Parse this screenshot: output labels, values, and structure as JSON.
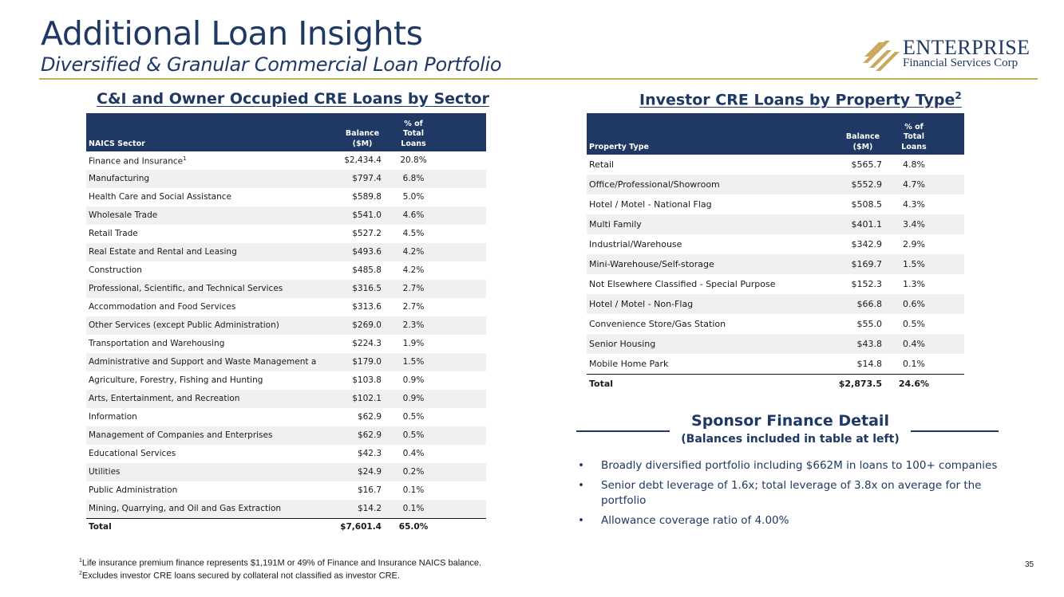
{
  "header": {
    "title": "Additional Loan Insights",
    "subtitle": "Diversified & Granular Commercial Loan Portfolio"
  },
  "logo": {
    "line1": "ENTERPRISE",
    "line2": "Financial Services Corp",
    "icon": "enterprise-stripes-logo",
    "color": "#c9a95c"
  },
  "ci_table": {
    "title": "C&I and Owner Occupied CRE Loans by Sector",
    "headers": {
      "name": "NAICS Sector",
      "balance": "Balance ($M)",
      "pct": "% of Total Loans"
    },
    "rows": [
      {
        "name": "Finance and Insurance",
        "sup": "1",
        "balance": "$2,434.4",
        "pct": "20.8%"
      },
      {
        "name": "Manufacturing",
        "balance": "$797.4",
        "pct": "6.8%"
      },
      {
        "name": "Health Care and Social Assistance",
        "balance": "$589.8",
        "pct": "5.0%"
      },
      {
        "name": "Wholesale Trade",
        "balance": "$541.0",
        "pct": "4.6%"
      },
      {
        "name": "Retail Trade",
        "balance": "$527.2",
        "pct": "4.5%"
      },
      {
        "name": "Real Estate and Rental and Leasing",
        "balance": "$493.6",
        "pct": "4.2%"
      },
      {
        "name": "Construction",
        "balance": "$485.8",
        "pct": "4.2%"
      },
      {
        "name": "Professional, Scientific, and Technical Services",
        "balance": "$316.5",
        "pct": "2.7%"
      },
      {
        "name": "Accommodation and Food Services",
        "balance": "$313.6",
        "pct": "2.7%"
      },
      {
        "name": "Other Services (except Public Administration)",
        "balance": "$269.0",
        "pct": "2.3%"
      },
      {
        "name": "Transportation and Warehousing",
        "balance": "$224.3",
        "pct": "1.9%"
      },
      {
        "name": "Administrative and Support and Waste Management a",
        "balance": "$179.0",
        "pct": "1.5%"
      },
      {
        "name": "Agriculture, Forestry, Fishing and Hunting",
        "balance": "$103.8",
        "pct": "0.9%"
      },
      {
        "name": "Arts, Entertainment, and Recreation",
        "balance": "$102.1",
        "pct": "0.9%"
      },
      {
        "name": "Information",
        "balance": "$62.9",
        "pct": "0.5%"
      },
      {
        "name": "Management of Companies and Enterprises",
        "balance": "$62.9",
        "pct": "0.5%"
      },
      {
        "name": "Educational Services",
        "balance": "$42.3",
        "pct": "0.4%"
      },
      {
        "name": "Utilities",
        "balance": "$24.9",
        "pct": "0.2%"
      },
      {
        "name": "Public Administration",
        "balance": "$16.7",
        "pct": "0.1%"
      },
      {
        "name": "Mining, Quarrying, and Oil and Gas Extraction",
        "balance": "$14.2",
        "pct": "0.1%"
      }
    ],
    "total": {
      "name": "Total",
      "balance": "$7,601.4",
      "pct": "65.0%"
    }
  },
  "cre_table": {
    "title": "Investor CRE Loans by Property Type",
    "title_sup": "2",
    "headers": {
      "name": "Property Type",
      "balance": "Balance ($M)",
      "pct": "% of Total Loans"
    },
    "rows": [
      {
        "name": "Retail",
        "balance": "$565.7",
        "pct": "4.8%"
      },
      {
        "name": "Office/Professional/Showroom",
        "balance": "$552.9",
        "pct": "4.7%"
      },
      {
        "name": "Hotel / Motel - National Flag",
        "balance": "$508.5",
        "pct": "4.3%"
      },
      {
        "name": "Multi Family",
        "balance": "$401.1",
        "pct": "3.4%"
      },
      {
        "name": "Industrial/Warehouse",
        "balance": "$342.9",
        "pct": "2.9%"
      },
      {
        "name": "Mini-Warehouse/Self-storage",
        "balance": "$169.7",
        "pct": "1.5%"
      },
      {
        "name": "Not Elsewhere Classified - Special Purpose",
        "balance": "$152.3",
        "pct": "1.3%"
      },
      {
        "name": "Hotel / Motel - Non-Flag",
        "balance": "$66.8",
        "pct": "0.6%"
      },
      {
        "name": "Convenience Store/Gas Station",
        "balance": "$55.0",
        "pct": "0.5%"
      },
      {
        "name": "Senior Housing",
        "balance": "$43.8",
        "pct": "0.4%"
      },
      {
        "name": "Mobile Home Park",
        "balance": "$14.8",
        "pct": "0.1%"
      }
    ],
    "total": {
      "name": "Total",
      "balance": "$2,873.5",
      "pct": "24.6%"
    }
  },
  "sponsor": {
    "title": "Sponsor Finance Detail",
    "subtitle": "(Balances included in table at left)",
    "bullets": [
      "Broadly diversified portfolio including $662M in loans to 100+ companies",
      "Senior debt leverage of 1.6x; total leverage of 3.8x on average for the portfolio",
      "Allowance coverage ratio of 4.00%"
    ]
  },
  "footnotes": [
    {
      "sup": "1",
      "text": "Life insurance premium finance represents $1,191M or 49% of Finance and Insurance NAICS balance."
    },
    {
      "sup": "2",
      "text": "Excludes investor CRE loans secured by collateral not classified as investor CRE."
    }
  ],
  "page_number": "35",
  "colors": {
    "navy": "#1f3864",
    "gold": "#c9a95c",
    "row_alt": "#f0f0f0"
  }
}
